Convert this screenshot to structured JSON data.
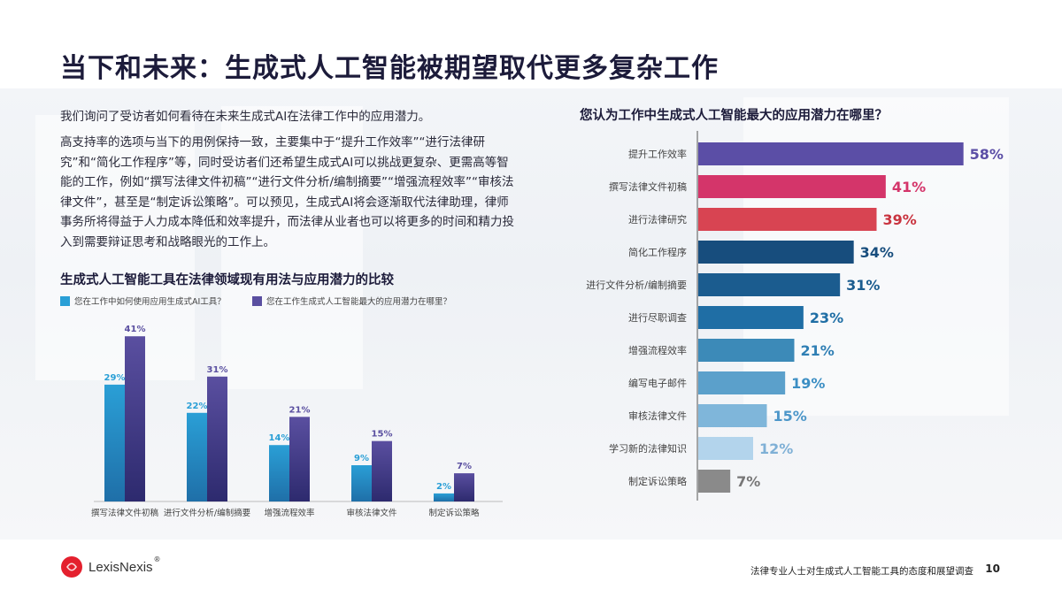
{
  "page": {
    "title": "当下和未来：生成式人工智能被期望取代更多复杂工作",
    "intro": "我们询问了受访者如何看待在未来生成式AI在法律工作中的应用潜力。",
    "paragraph": "高支持率的选项与当下的用例保持一致，主要集中于“提升工作效率”“进行法律研究”和“简化工作程序”等，同时受访者们还希望生成式AI可以挑战更复杂、更需高等智能的工作，例如“撰写法律文件初稿”“进行文件分析/编制摘要”“增强流程效率”“审核法律文件”，甚至是“制定诉讼策略”。可以预见，生成式AI将会逐渐取代法律助理，律师事务所将得益于人力成本降低和效率提升，而法律从业者也可以将更多的时间和精力投入到需要辩证思考和战略眼光的工作上。",
    "footer_logo": "LexisNexis",
    "footer_logo_mark": "®",
    "footer_text": "法律专业人士对生成式人工智能工具的态度和展望调查",
    "page_number": "10"
  },
  "colors": {
    "current_use": "#2a9fd6",
    "potential": "#5a4fa0",
    "title": "#1c1b3a"
  },
  "chart_data": [
    {
      "type": "bar",
      "title": "生成式人工智能工具在法律领域现有用法与应用潜力的比较",
      "categories": [
        "撰写法律文件初稿",
        "进行文件分析/编制摘要",
        "增强流程效率",
        "审核法律文件",
        "制定诉讼策略"
      ],
      "series": [
        {
          "name": "您在工作中如何使用应用生成式AI工具？",
          "values": [
            29,
            22,
            14,
            9,
            2
          ],
          "labels": [
            "29%",
            "22%",
            "14%",
            "9%",
            "2%"
          ]
        },
        {
          "name": "您在工作生成式人工智能最大的应用潜力在哪里？",
          "values": [
            41,
            31,
            21,
            15,
            7
          ],
          "labels": [
            "41%",
            "31%",
            "21%",
            "15%",
            "7%"
          ]
        }
      ],
      "ylim": [
        0,
        45
      ],
      "grid": false,
      "legend": "top-left"
    },
    {
      "type": "bar",
      "orientation": "horizontal",
      "title": "您认为工作中生成式人工智能最大的应用潜力在哪里？",
      "categories": [
        "提升工作效率",
        "撰写法律文件初稿",
        "进行法律研究",
        "简化工作程序",
        "进行文件分析/编制摘要",
        "进行尽职调查",
        "增强流程效率",
        "编写电子邮件",
        "审核法律文件",
        "学习新的法律知识",
        "制定诉讼策略"
      ],
      "values": [
        58,
        41,
        39,
        34,
        31,
        23,
        21,
        19,
        15,
        12,
        7
      ],
      "labels": [
        "58%",
        "41%",
        "39%",
        "34%",
        "31%",
        "23%",
        "21%",
        "19%",
        "15%",
        "12%",
        "7%"
      ],
      "bar_colors": [
        "#5b4ea6",
        "#d4356a",
        "#d84452",
        "#174d7d",
        "#1b5c8f",
        "#1f6ea5",
        "#3c8ab8",
        "#5ba0cb",
        "#7fb6da",
        "#b3d4ec",
        "#8a8a8a"
      ],
      "label_colors": [
        "#5b4ea6",
        "#d4356a",
        "#c9333f",
        "#174d7d",
        "#1b5c8f",
        "#1f6ea5",
        "#2f7fb4",
        "#3d8fc4",
        "#4c96c9",
        "#7fb0d6",
        "#777777"
      ],
      "xlim": [
        0,
        60
      ],
      "grid": false
    }
  ]
}
